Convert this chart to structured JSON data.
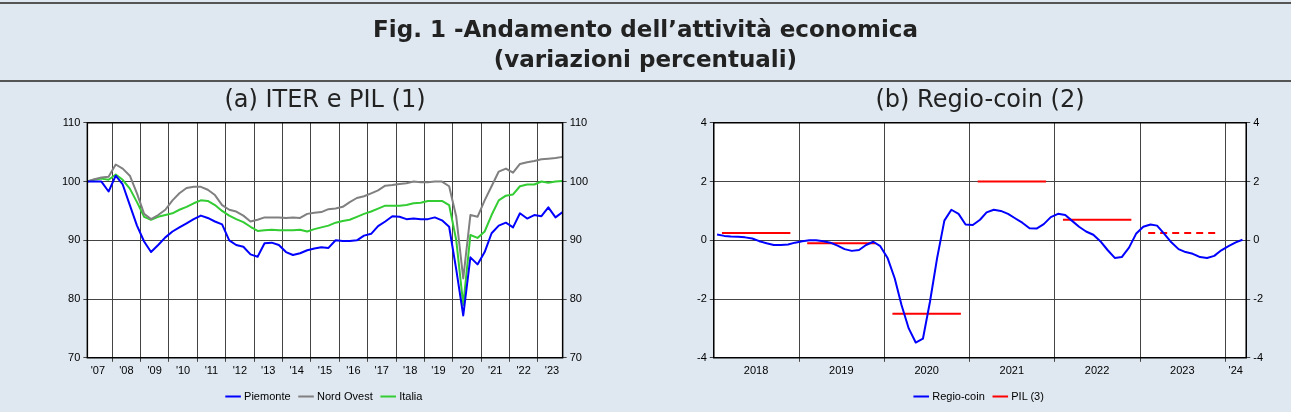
{
  "chart_data": [
    {
      "type": "line",
      "title": "(a) ITER e PIL (1)",
      "annotations": [
        "Fig. 1 -Andamento dell’attività economica",
        "(variazioni percentuali)"
      ],
      "x": [
        "2007-02-15",
        "2007-05-15",
        "2007-08-15",
        "2007-11-15",
        "2008-02-15",
        "2008-05-15",
        "2008-08-15",
        "2008-11-15",
        "2009-02-15",
        "2009-05-15",
        "2009-08-15",
        "2009-11-15",
        "2010-02-15",
        "2010-05-15",
        "2010-08-15",
        "2010-11-15",
        "2011-02-15",
        "2011-05-15",
        "2011-08-15",
        "2011-11-15",
        "2012-02-15",
        "2012-05-15",
        "2012-08-15",
        "2012-11-15",
        "2013-02-15",
        "2013-05-15",
        "2013-08-15",
        "2013-11-15",
        "2014-02-15",
        "2014-05-15",
        "2014-08-15",
        "2014-11-15",
        "2015-02-15",
        "2015-05-15",
        "2015-08-15",
        "2015-11-15",
        "2016-02-15",
        "2016-05-15",
        "2016-08-15",
        "2016-11-15",
        "2017-02-15",
        "2017-05-15",
        "2017-08-15",
        "2017-11-15",
        "2018-02-15",
        "2018-05-15",
        "2018-08-15",
        "2018-11-15",
        "2019-02-15",
        "2019-05-15",
        "2019-08-15",
        "2019-11-15",
        "2020-02-15",
        "2020-05-15",
        "2020-08-15",
        "2020-11-15",
        "2021-02-15",
        "2021-05-15",
        "2021-08-15",
        "2021-11-15",
        "2022-02-15",
        "2022-05-15",
        "2022-08-15",
        "2022-11-15",
        "2023-02-15",
        "2023-05-15",
        "2023-08-15",
        "2023-11-15"
      ],
      "series": [
        {
          "name": "Piemonte",
          "color": "#0000ff",
          "values": [
            100,
            100,
            100,
            98.3,
            101,
            99.5,
            96,
            92.5,
            89.8,
            88,
            89.2,
            90.5,
            91.5,
            92.2,
            92.9,
            93.6,
            94.2,
            93.8,
            93.2,
            92.7,
            90,
            89.2,
            88.9,
            87.6,
            87.2,
            89.5,
            89.6,
            89.2,
            88,
            87.5,
            87.8,
            88.3,
            88.6,
            88.8,
            88.7,
            90,
            89.9,
            89.9,
            90,
            90.8,
            91.1,
            92.4,
            93.2,
            94.1,
            94,
            93.6,
            93.7,
            93.6,
            93.6,
            93.9,
            93.4,
            92.3,
            85,
            77.2,
            87.1,
            85.9,
            88,
            91.2,
            92.5,
            93,
            92.2,
            94.6,
            93.7,
            94.3,
            94.1,
            95.6,
            93.9,
            94.8
          ]
        },
        {
          "name": "Nord Ovest",
          "color": "#808080",
          "values": [
            100,
            100.4,
            100.7,
            100.8,
            102.9,
            102.2,
            101,
            98,
            94.5,
            93.6,
            94.3,
            95.2,
            96.8,
            98,
            98.9,
            99.1,
            99.1,
            98.6,
            97.7,
            96,
            95.2,
            94.9,
            94.2,
            93.2,
            93.5,
            93.9,
            93.9,
            93.9,
            93.8,
            93.9,
            93.8,
            94.5,
            94.7,
            94.8,
            95.3,
            95.4,
            95.7,
            96.5,
            97.2,
            97.5,
            98,
            98.5,
            99.3,
            99.4,
            99.6,
            99.7,
            100,
            99.9,
            99.9,
            100,
            100,
            99.2,
            94,
            83.5,
            94.3,
            94,
            96.8,
            99.2,
            101.7,
            102.2,
            101.5,
            103,
            103.3,
            103.5,
            103.8,
            103.9,
            104,
            104.2
          ]
        },
        {
          "name": "Italia",
          "color": "#33cc33",
          "values": [
            100,
            100.3,
            100.5,
            100.3,
            101.2,
            100.3,
            98.8,
            96.5,
            94,
            93.5,
            94,
            94.3,
            94.6,
            95.2,
            95.7,
            96.3,
            96.8,
            96.7,
            96,
            95,
            94.2,
            93.6,
            93.1,
            92.3,
            91.6,
            91.7,
            91.8,
            91.7,
            91.7,
            91.7,
            91.8,
            91.5,
            91.9,
            92.2,
            92.5,
            93,
            93.3,
            93.5,
            94,
            94.5,
            94.9,
            95.4,
            95.9,
            95.9,
            95.9,
            96,
            96.3,
            96.4,
            96.7,
            96.7,
            96.7,
            96,
            90,
            79,
            90.9,
            90.4,
            91.5,
            94.3,
            96.8,
            97.6,
            97.8,
            99.2,
            99.5,
            99.5,
            100,
            99.8,
            100,
            100.1
          ]
        }
      ],
      "xlim": [
        "2007-02-15",
        "2023-11-15"
      ],
      "xticks": [
        {
          "value": "2007-07-01",
          "label": "'07"
        },
        {
          "value": "2008-01-01",
          "label": null
        },
        {
          "value": "2008-07-01",
          "label": "'08"
        },
        {
          "value": "2009-01-01",
          "label": null
        },
        {
          "value": "2009-07-01",
          "label": "'09"
        },
        {
          "value": "2010-01-01",
          "label": null
        },
        {
          "value": "2010-07-01",
          "label": "'10"
        },
        {
          "value": "2011-01-01",
          "label": null
        },
        {
          "value": "2011-07-01",
          "label": "'11"
        },
        {
          "value": "2012-01-01",
          "label": null
        },
        {
          "value": "2012-07-01",
          "label": "'12"
        },
        {
          "value": "2013-01-01",
          "label": null
        },
        {
          "value": "2013-07-01",
          "label": "'13"
        },
        {
          "value": "2014-01-01",
          "label": null
        },
        {
          "value": "2014-07-01",
          "label": "'14"
        },
        {
          "value": "2015-01-01",
          "label": null
        },
        {
          "value": "2015-07-01",
          "label": "'15"
        },
        {
          "value": "2016-01-01",
          "label": null
        },
        {
          "value": "2016-07-01",
          "label": "'16"
        },
        {
          "value": "2017-01-01",
          "label": null
        },
        {
          "value": "2017-07-01",
          "label": "'17"
        },
        {
          "value": "2018-01-01",
          "label": null
        },
        {
          "value": "2018-07-01",
          "label": "'18"
        },
        {
          "value": "2019-01-01",
          "label": null
        },
        {
          "value": "2019-07-01",
          "label": "'19"
        },
        {
          "value": "2020-01-01",
          "label": null
        },
        {
          "value": "2020-07-01",
          "label": "'20"
        },
        {
          "value": "2021-01-01",
          "label": null
        },
        {
          "value": "2021-07-01",
          "label": "'21"
        },
        {
          "value": "2022-01-01",
          "label": null
        },
        {
          "value": "2022-07-01",
          "label": "'22"
        },
        {
          "value": "2023-01-01",
          "label": null
        },
        {
          "value": "2023-07-01",
          "label": "'23"
        }
      ],
      "ylim": [
        70,
        110
      ],
      "yticks": [
        70,
        80,
        90,
        100,
        110
      ],
      "y2lim": [
        70,
        110
      ],
      "y2ticks": [
        70,
        80,
        90,
        100,
        110
      ],
      "grid": true,
      "legend": "bottom",
      "marker": "none"
    },
    {
      "type": "line",
      "title": "(b) Regio-coin (2)",
      "series": [
        {
          "name": "Regio-coin",
          "color": "#0000ff",
          "x": [
            "2018-01-15",
            "2018-02-15",
            "2018-03-15",
            "2018-04-15",
            "2018-05-15",
            "2018-06-15",
            "2018-07-15",
            "2018-08-15",
            "2018-09-15",
            "2018-10-15",
            "2018-11-15",
            "2018-12-15",
            "2019-01-15",
            "2019-02-15",
            "2019-03-15",
            "2019-04-15",
            "2019-05-15",
            "2019-06-15",
            "2019-07-15",
            "2019-08-15",
            "2019-09-15",
            "2019-10-15",
            "2019-11-15",
            "2019-12-15",
            "2020-01-15",
            "2020-02-15",
            "2020-03-15",
            "2020-04-15",
            "2020-05-15",
            "2020-06-15",
            "2020-07-15",
            "2020-08-15",
            "2020-09-15",
            "2020-10-15",
            "2020-11-15",
            "2020-12-15",
            "2021-01-15",
            "2021-02-15",
            "2021-03-15",
            "2021-04-15",
            "2021-05-15",
            "2021-06-15",
            "2021-07-15",
            "2021-08-15",
            "2021-09-15",
            "2021-10-15",
            "2021-11-15",
            "2021-12-15",
            "2022-01-15",
            "2022-02-15",
            "2022-03-15",
            "2022-04-15",
            "2022-05-15",
            "2022-06-15",
            "2022-07-15",
            "2022-08-15",
            "2022-09-15",
            "2022-10-15",
            "2022-11-15",
            "2022-12-15",
            "2023-01-15",
            "2023-02-15",
            "2023-03-15",
            "2023-04-15",
            "2023-05-15",
            "2023-06-15",
            "2023-07-15",
            "2023-08-15",
            "2023-09-15",
            "2023-10-15",
            "2023-11-15",
            "2023-12-15",
            "2024-01-15",
            "2024-02-15",
            "2024-03-15"
          ],
          "values": [
            0.2,
            0.15,
            0.13,
            0.12,
            0.1,
            0.06,
            -0.03,
            -0.1,
            -0.16,
            -0.16,
            -0.14,
            -0.08,
            -0.03,
            0,
            0,
            -0.03,
            -0.08,
            -0.18,
            -0.3,
            -0.36,
            -0.33,
            -0.16,
            -0.05,
            -0.2,
            -0.6,
            -1.3,
            -2.2,
            -3,
            -3.48,
            -3.35,
            -2.1,
            -0.6,
            0.67,
            1.04,
            0.9,
            0.54,
            0.52,
            0.7,
            0.95,
            1.04,
            1,
            0.9,
            0.75,
            0.6,
            0.41,
            0.4,
            0.55,
            0.79,
            0.9,
            0.86,
            0.67,
            0.46,
            0.3,
            0.19,
            -0.03,
            -0.33,
            -0.6,
            -0.57,
            -0.25,
            0.22,
            0.46,
            0.54,
            0.5,
            0.22,
            -0.07,
            -0.3,
            -0.4,
            -0.46,
            -0.57,
            -0.6,
            -0.53,
            -0.34,
            -0.2,
            -0.07,
            0.02
          ]
        },
        {
          "name": "PIL (3)",
          "color": "#ff0000",
          "x": [
            "2018-02-05",
            "2018-11-25",
            "2019-01-01",
            "2019-02-05",
            "2019-11-25",
            "2020-01-01",
            "2020-02-05",
            "2020-11-25",
            "2021-01-01",
            "2021-02-05",
            "2021-11-25",
            "2022-01-01",
            "2022-02-05",
            "2022-11-25"
          ],
          "values": [
            0.25,
            0.25,
            null,
            -0.1,
            -0.1,
            null,
            -2.5,
            -2.5,
            null,
            2,
            2,
            null,
            0.7,
            0.7
          ]
        },
        {
          "color": "#ff0000",
          "line_style": "dashed",
          "x": [
            "2023-02-05",
            "2023-11-25"
          ],
          "values": [
            0.25,
            0.25
          ]
        }
      ],
      "xlim": [
        "2018-01-01",
        "2024-03-31"
      ],
      "xticks": [
        {
          "value": "2018-07-01",
          "label": "2018"
        },
        {
          "value": "2019-01-01",
          "label": null
        },
        {
          "value": "2019-07-01",
          "label": "2019"
        },
        {
          "value": "2020-01-01",
          "label": null
        },
        {
          "value": "2020-07-01",
          "label": "2020"
        },
        {
          "value": "2021-01-01",
          "label": null
        },
        {
          "value": "2021-07-01",
          "label": "2021"
        },
        {
          "value": "2022-01-01",
          "label": null
        },
        {
          "value": "2022-07-01",
          "label": "2022"
        },
        {
          "value": "2023-01-01",
          "label": null
        },
        {
          "value": "2023-07-01",
          "label": "2023"
        },
        {
          "value": "2024-01-01",
          "label": null
        },
        {
          "value": "2024-02-15",
          "label": "'24"
        }
      ],
      "ylim": [
        -4,
        4
      ],
      "yticks": [
        -4,
        -2,
        0,
        2,
        4
      ],
      "y2lim": [
        -4,
        4
      ],
      "y2ticks": [
        -4,
        -2,
        0,
        2,
        4
      ],
      "grid": true,
      "legend": "bottom",
      "marker": "none",
      "line_style": "solid"
    }
  ]
}
